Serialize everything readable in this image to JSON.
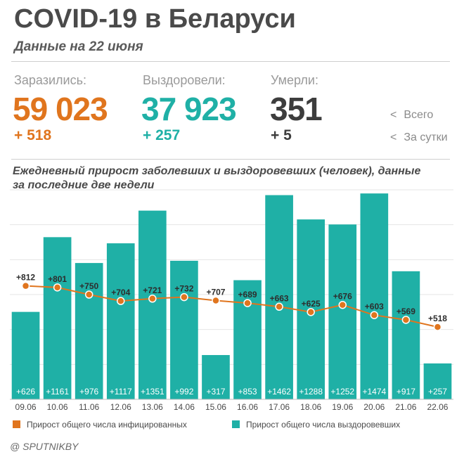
{
  "header": {
    "title": "COVID-19 в Беларуси",
    "subtitle": "Данные на 22 июня"
  },
  "stats": {
    "infected": {
      "label": "Заразились:",
      "total": "59 023",
      "daily": "+ 518"
    },
    "recovered": {
      "label": "Выздоровели:",
      "total": "37 923",
      "daily": "+ 257"
    },
    "deaths": {
      "label": "Умерли:",
      "total": "351",
      "daily": "+ 5"
    },
    "legend_total": "Всего",
    "legend_daily": "За сутки",
    "legend_arrow": "<"
  },
  "colors": {
    "infected": "#e0751e",
    "recovered": "#1fb0a6",
    "deaths": "#3d3d3d",
    "grid": "#e4e4e4"
  },
  "chart_data": {
    "type": "bar",
    "title": "Ежедневный прирост заболевших и выздоровевших (человек), данные за последние две недели",
    "categories": [
      "09.06",
      "10.06",
      "11.06",
      "12.06",
      "13.06",
      "14.06",
      "15.06",
      "16.06",
      "17.06",
      "18.06",
      "19.06",
      "20.06",
      "21.06",
      "22.06"
    ],
    "series": [
      {
        "name": "Прирост общего числа выздоровевших",
        "type": "bar",
        "values": [
          626,
          1161,
          976,
          1117,
          1351,
          992,
          317,
          853,
          1462,
          1288,
          1252,
          1474,
          917,
          257
        ],
        "labels": [
          "+626",
          "+1161",
          "+976",
          "+1117",
          "+1351",
          "+992",
          "+317",
          "+853",
          "+1462",
          "+1288",
          "+1252",
          "+1474",
          "+917",
          "+257"
        ]
      },
      {
        "name": "Прирост общего числа инфицированных",
        "type": "line",
        "values": [
          812,
          801,
          750,
          704,
          721,
          732,
          707,
          689,
          663,
          625,
          676,
          603,
          569,
          518
        ],
        "labels": [
          "+812",
          "+801",
          "+750",
          "+704",
          "+721",
          "+732",
          "+707",
          "+689",
          "+663",
          "+625",
          "+676",
          "+603",
          "+569",
          "+518"
        ]
      }
    ],
    "ylim": [
      0,
      1500
    ],
    "grid": true
  },
  "source": "@ SPUTNIKBY"
}
